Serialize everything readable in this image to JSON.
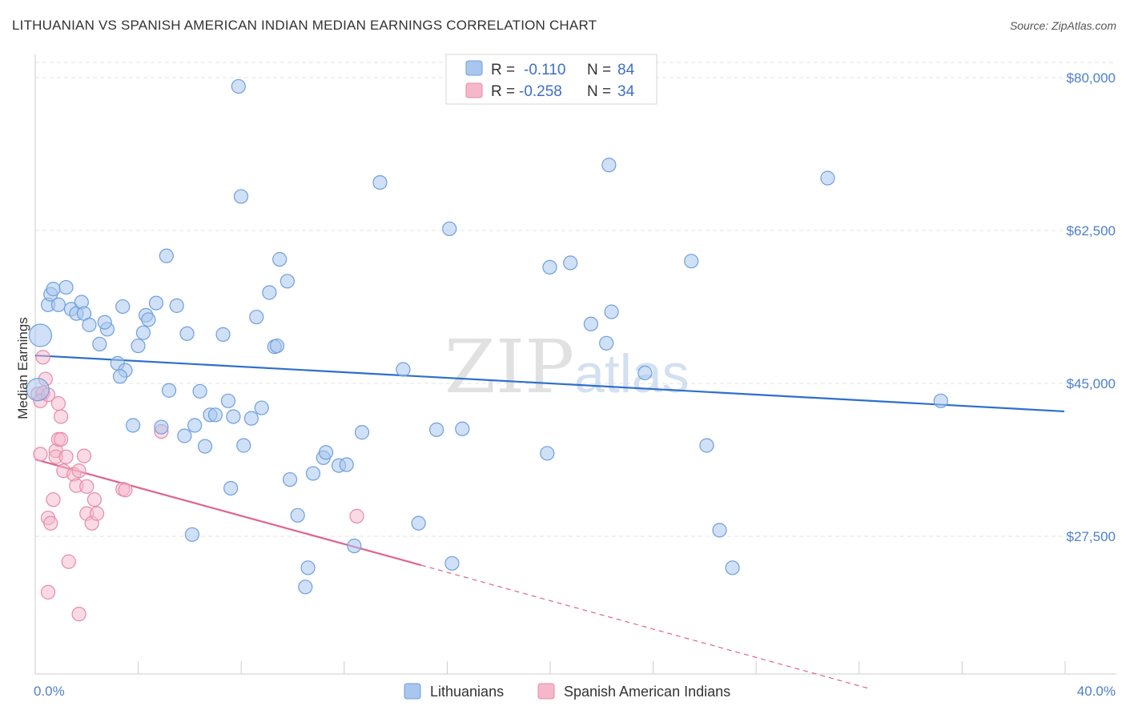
{
  "title": "LITHUANIAN VS SPANISH AMERICAN INDIAN MEDIAN EARNINGS CORRELATION CHART",
  "source": "Source: ZipAtlas.com",
  "watermark": {
    "zip": "ZIP",
    "atlas": "atlas"
  },
  "legend_top": {
    "rows": [
      {
        "r_label": "R =",
        "r_value": "-0.110",
        "n_label": "N =",
        "n_value": "84",
        "color": "#a9c6ef"
      },
      {
        "r_label": "R =",
        "r_value": "-0.258",
        "n_label": "N =",
        "n_value": "34",
        "color": "#f5b8cb"
      }
    ]
  },
  "legend_bottom": {
    "items": [
      {
        "label": "Lithuanians",
        "color": "#a9c6ef"
      },
      {
        "label": "Spanish American Indians",
        "color": "#f5b8cb"
      }
    ]
  },
  "colors": {
    "blue_fill": "#a9c6ef",
    "blue_stroke": "#6e9fde",
    "blue_line": "#2e6fcc",
    "pink_fill": "#f5b8cb",
    "pink_stroke": "#e88aa8",
    "pink_line": "#e0638f",
    "tick_text": "#4f7fc9"
  },
  "chart_data": {
    "type": "scatter",
    "xlabel": "",
    "ylabel": "Median Earnings",
    "xlim": [
      0,
      40
    ],
    "ylim": [
      10000,
      83000
    ],
    "x_tick_labels": [
      "0.0%",
      "40.0%"
    ],
    "y_ticks": [
      {
        "value": 27500,
        "label": "$27,500"
      },
      {
        "value": 45000,
        "label": "$45,000"
      },
      {
        "value": 62500,
        "label": "$62,500"
      },
      {
        "value": 80000,
        "label": "$80,000"
      }
    ],
    "grid": true,
    "series": [
      {
        "name": "Lithuanians",
        "trend": {
          "x": [
            0,
            40
          ],
          "y": [
            48200,
            41800
          ]
        },
        "points": [
          [
            0.2,
            50500
          ],
          [
            0.5,
            54000
          ],
          [
            0.6,
            55200
          ],
          [
            0.7,
            55800
          ],
          [
            0.9,
            54000
          ],
          [
            1.2,
            56000
          ],
          [
            1.4,
            53500
          ],
          [
            1.6,
            53000
          ],
          [
            1.8,
            54300
          ],
          [
            1.9,
            53000
          ],
          [
            2.1,
            51700
          ],
          [
            2.5,
            49500
          ],
          [
            2.8,
            51200
          ],
          [
            3.2,
            47300
          ],
          [
            3.5,
            46500
          ],
          [
            3.3,
            45800
          ],
          [
            3.4,
            53800
          ],
          [
            3.8,
            40200
          ],
          [
            4.0,
            49300
          ],
          [
            4.2,
            50800
          ],
          [
            4.3,
            52800
          ],
          [
            4.4,
            52300
          ],
          [
            4.7,
            54200
          ],
          [
            4.9,
            40000
          ],
          [
            5.1,
            59600
          ],
          [
            5.2,
            44200
          ],
          [
            5.5,
            53900
          ],
          [
            5.8,
            39000
          ],
          [
            5.9,
            50700
          ],
          [
            6.1,
            27700
          ],
          [
            6.2,
            40200
          ],
          [
            6.4,
            44100
          ],
          [
            6.6,
            37800
          ],
          [
            6.8,
            41400
          ],
          [
            7.0,
            41400
          ],
          [
            7.3,
            50600
          ],
          [
            7.5,
            43000
          ],
          [
            7.7,
            41200
          ],
          [
            7.6,
            33000
          ],
          [
            7.9,
            79000
          ],
          [
            8.0,
            66400
          ],
          [
            8.1,
            37900
          ],
          [
            8.4,
            41000
          ],
          [
            8.6,
            52600
          ],
          [
            8.8,
            42200
          ],
          [
            9.1,
            55400
          ],
          [
            9.3,
            49200
          ],
          [
            9.4,
            49300
          ],
          [
            9.5,
            59200
          ],
          [
            9.8,
            56700
          ],
          [
            9.9,
            34000
          ],
          [
            10.2,
            29900
          ],
          [
            10.5,
            21700
          ],
          [
            10.6,
            23900
          ],
          [
            10.8,
            34700
          ],
          [
            11.2,
            36500
          ],
          [
            11.3,
            37100
          ],
          [
            11.8,
            35600
          ],
          [
            12.1,
            35700
          ],
          [
            12.4,
            26400
          ],
          [
            12.7,
            39400
          ],
          [
            13.4,
            68000
          ],
          [
            14.3,
            46600
          ],
          [
            14.9,
            29000
          ],
          [
            15.6,
            39700
          ],
          [
            16.1,
            62700
          ],
          [
            16.2,
            24400
          ],
          [
            16.6,
            39800
          ],
          [
            19.9,
            37000
          ],
          [
            20.0,
            58300
          ],
          [
            20.8,
            58800
          ],
          [
            21.6,
            51800
          ],
          [
            22.3,
            70000
          ],
          [
            22.2,
            49600
          ],
          [
            22.4,
            53200
          ],
          [
            23.7,
            46200
          ],
          [
            25.5,
            59000
          ],
          [
            26.1,
            37900
          ],
          [
            26.6,
            28200
          ],
          [
            27.1,
            23900
          ],
          [
            30.8,
            68500
          ],
          [
            35.2,
            43000
          ],
          [
            0.1,
            44300
          ],
          [
            2.7,
            52000
          ]
        ]
      },
      {
        "name": "Spanish American Indians",
        "trend": {
          "x": [
            0,
            15
          ],
          "y": [
            36300,
            24200
          ]
        },
        "trend_extension": {
          "x": [
            15,
            32.5
          ],
          "y": [
            24200,
            10000
          ]
        },
        "points": [
          [
            0.1,
            43800
          ],
          [
            0.2,
            36900
          ],
          [
            0.3,
            43900
          ],
          [
            0.4,
            45500
          ],
          [
            0.5,
            29600
          ],
          [
            0.6,
            29000
          ],
          [
            0.7,
            31700
          ],
          [
            0.8,
            37300
          ],
          [
            0.8,
            36600
          ],
          [
            0.9,
            38600
          ],
          [
            1.0,
            41200
          ],
          [
            1.0,
            38600
          ],
          [
            1.1,
            35000
          ],
          [
            1.2,
            36600
          ],
          [
            1.3,
            24600
          ],
          [
            1.5,
            34600
          ],
          [
            1.6,
            33300
          ],
          [
            1.7,
            35000
          ],
          [
            1.9,
            36700
          ],
          [
            2.0,
            30100
          ],
          [
            2.2,
            29000
          ],
          [
            2.3,
            31700
          ],
          [
            2.4,
            30100
          ],
          [
            3.4,
            32900
          ],
          [
            3.5,
            32800
          ],
          [
            4.9,
            39500
          ],
          [
            12.5,
            29800
          ],
          [
            0.5,
            21100
          ],
          [
            1.7,
            18600
          ],
          [
            0.2,
            43000
          ],
          [
            0.3,
            48000
          ],
          [
            0.5,
            43700
          ],
          [
            2.0,
            33200
          ],
          [
            0.9,
            42700
          ]
        ]
      }
    ]
  }
}
